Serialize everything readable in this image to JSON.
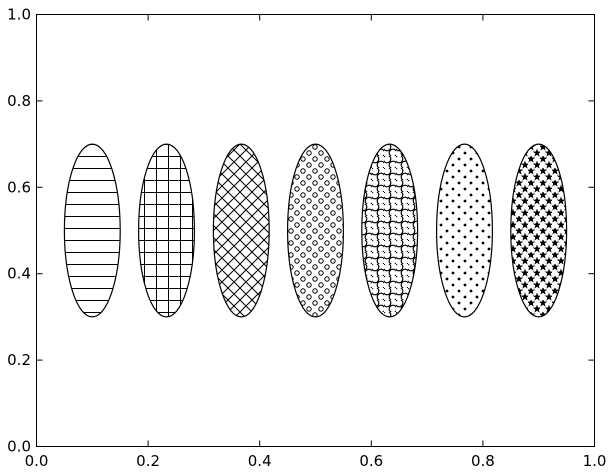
{
  "chart_data": {
    "type": "scatter",
    "title": "",
    "xlabel": "",
    "ylabel": "",
    "xlim": [
      0.0,
      1.0
    ],
    "ylim": [
      0.0,
      1.0
    ],
    "grid": false,
    "legend": "none",
    "x_ticks": [
      {
        "value": 0.0,
        "label": "0.0"
      },
      {
        "value": 0.2,
        "label": "0.2"
      },
      {
        "value": 0.4,
        "label": "0.4"
      },
      {
        "value": 0.6,
        "label": "0.6"
      },
      {
        "value": 0.8,
        "label": "0.8"
      },
      {
        "value": 1.0,
        "label": "1.0"
      }
    ],
    "y_ticks": [
      {
        "value": 0.0,
        "label": "0.0"
      },
      {
        "value": 0.2,
        "label": "0.2"
      },
      {
        "value": 0.4,
        "label": "0.4"
      },
      {
        "value": 0.6,
        "label": "0.6"
      },
      {
        "value": 0.8,
        "label": "0.8"
      },
      {
        "value": 1.0,
        "label": "1.0"
      }
    ],
    "ellipses": [
      {
        "center": [
          0.1,
          0.5
        ],
        "width": 0.1,
        "height": 0.4,
        "hatch": "-",
        "pattern": "horizontal-lines"
      },
      {
        "center": [
          0.233,
          0.5
        ],
        "width": 0.1,
        "height": 0.4,
        "hatch": "+",
        "pattern": "grid"
      },
      {
        "center": [
          0.367,
          0.5
        ],
        "width": 0.1,
        "height": 0.4,
        "hatch": "x",
        "pattern": "crosshatch"
      },
      {
        "center": [
          0.5,
          0.5
        ],
        "width": 0.1,
        "height": 0.4,
        "hatch": "o",
        "pattern": "small-circles"
      },
      {
        "center": [
          0.633,
          0.5
        ],
        "width": 0.1,
        "height": 0.4,
        "hatch": "O",
        "pattern": "large-circles"
      },
      {
        "center": [
          0.767,
          0.5
        ],
        "width": 0.1,
        "height": 0.4,
        "hatch": ".",
        "pattern": "dots"
      },
      {
        "center": [
          0.9,
          0.5
        ],
        "width": 0.1,
        "height": 0.4,
        "hatch": "*",
        "pattern": "stars"
      }
    ],
    "colors": {
      "edge": "#000000",
      "face": "#ffffff",
      "hatch": "#000000",
      "background": "#ffffff"
    }
  }
}
